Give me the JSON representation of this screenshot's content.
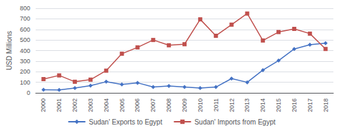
{
  "chart_data": {
    "type": "line",
    "categories": [
      "2000",
      "2001",
      "2002",
      "2003",
      "2004",
      "2005",
      "2006",
      "2007",
      "2008",
      "2009",
      "2010",
      "2011",
      "2012",
      "2013",
      "2014",
      "2015",
      "2016",
      "2017",
      "2018"
    ],
    "series": [
      {
        "name": "Sudan' Exports to Egypt",
        "color": "#4472C4",
        "marker": "diamond",
        "values": [
          30,
          28,
          45,
          68,
          105,
          80,
          95,
          55,
          65,
          55,
          45,
          55,
          135,
          100,
          215,
          305,
          415,
          455,
          470
        ]
      },
      {
        "name": "Sudan' Imports from Egypt",
        "color": "#C0504D",
        "marker": "square",
        "values": [
          130,
          165,
          105,
          125,
          210,
          370,
          430,
          500,
          450,
          460,
          695,
          540,
          645,
          750,
          495,
          575,
          605,
          560,
          415
        ]
      }
    ],
    "ylabel": "USD Millions",
    "ylim": [
      0,
      800
    ],
    "yticks": [
      0,
      100,
      200,
      300,
      400,
      500,
      600,
      700,
      800
    ],
    "grid": true,
    "legend": "bottom"
  }
}
